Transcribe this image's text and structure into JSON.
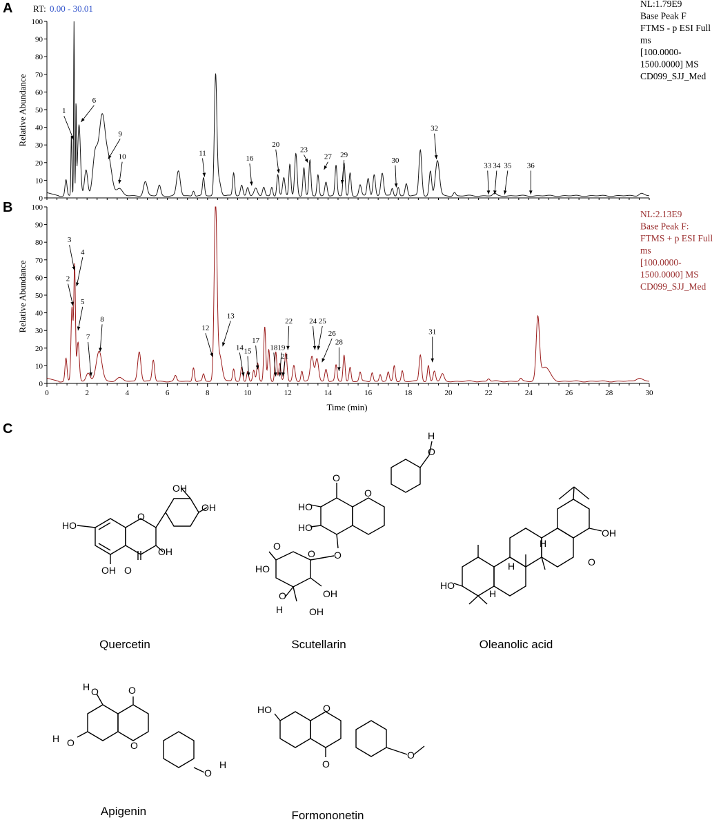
{
  "panels": {
    "a": "A",
    "b": "B",
    "c": "C"
  },
  "colors": {
    "trace_a": "#1a1a1a",
    "trace_b": "#9b1c1c",
    "rt_value": "#3355cc",
    "info_b": "#9b3030"
  },
  "chart_data": [
    {
      "id": "A",
      "type": "line",
      "title": "",
      "ylabel": "Relative Abundance",
      "xlabel": "",
      "xlim": [
        0,
        30
      ],
      "ylim": [
        0,
        100
      ],
      "yticks": [
        0,
        10,
        20,
        30,
        40,
        50,
        60,
        70,
        80,
        90,
        100
      ],
      "rt_label": "RT:",
      "rt_value": "0.00 - 30.01",
      "info": [
        "NL:1.79E9",
        "Base Peak F",
        "FTMS - p ESI Full",
        "ms",
        "[100.0000-",
        "1500.0000] MS",
        "CD099_SJJ_Med"
      ],
      "peaks": [
        {
          "x": 0.95,
          "h": 9,
          "w": 0.05
        },
        {
          "x": 1.22,
          "h": 35,
          "w": 0.025
        },
        {
          "x": 1.35,
          "h": 100,
          "w": 0.02
        },
        {
          "x": 1.45,
          "h": 50,
          "w": 0.02
        },
        {
          "x": 1.6,
          "h": 40,
          "w": 0.07
        },
        {
          "x": 1.95,
          "h": 15,
          "w": 0.08
        },
        {
          "x": 2.4,
          "h": 22,
          "w": 0.12
        },
        {
          "x": 2.75,
          "h": 45,
          "w": 0.16
        },
        {
          "x": 3.1,
          "h": 18,
          "w": 0.15
        },
        {
          "x": 3.6,
          "h": 4,
          "w": 0.15
        },
        {
          "x": 4.9,
          "h": 8,
          "w": 0.09
        },
        {
          "x": 5.6,
          "h": 6,
          "w": 0.07
        },
        {
          "x": 6.55,
          "h": 14,
          "w": 0.09
        },
        {
          "x": 7.3,
          "h": 3,
          "w": 0.05
        },
        {
          "x": 7.8,
          "h": 10,
          "w": 0.05
        },
        {
          "x": 8.4,
          "h": 66,
          "w": 0.06
        },
        {
          "x": 8.55,
          "h": 10,
          "w": 0.1
        },
        {
          "x": 9.3,
          "h": 13,
          "w": 0.05
        },
        {
          "x": 9.7,
          "h": 6,
          "w": 0.06
        },
        {
          "x": 10.0,
          "h": 5,
          "w": 0.06
        },
        {
          "x": 10.4,
          "h": 4,
          "w": 0.08
        },
        {
          "x": 10.8,
          "h": 5,
          "w": 0.06
        },
        {
          "x": 11.2,
          "h": 5,
          "w": 0.05
        },
        {
          "x": 11.5,
          "h": 12,
          "w": 0.05
        },
        {
          "x": 11.8,
          "h": 10,
          "w": 0.06
        },
        {
          "x": 12.1,
          "h": 18,
          "w": 0.05
        },
        {
          "x": 12.4,
          "h": 24,
          "w": 0.06
        },
        {
          "x": 12.8,
          "h": 16,
          "w": 0.05
        },
        {
          "x": 13.1,
          "h": 20,
          "w": 0.05
        },
        {
          "x": 13.5,
          "h": 12,
          "w": 0.05
        },
        {
          "x": 13.9,
          "h": 8,
          "w": 0.06
        },
        {
          "x": 14.4,
          "h": 17,
          "w": 0.05
        },
        {
          "x": 14.8,
          "h": 19,
          "w": 0.05
        },
        {
          "x": 15.1,
          "h": 13,
          "w": 0.05
        },
        {
          "x": 15.6,
          "h": 6,
          "w": 0.06
        },
        {
          "x": 16.0,
          "h": 10,
          "w": 0.06
        },
        {
          "x": 16.3,
          "h": 12,
          "w": 0.06
        },
        {
          "x": 16.7,
          "h": 13,
          "w": 0.07
        },
        {
          "x": 17.2,
          "h": 4,
          "w": 0.05
        },
        {
          "x": 17.5,
          "h": 5,
          "w": 0.05
        },
        {
          "x": 17.9,
          "h": 7,
          "w": 0.06
        },
        {
          "x": 18.6,
          "h": 26,
          "w": 0.07
        },
        {
          "x": 19.1,
          "h": 14,
          "w": 0.06
        },
        {
          "x": 19.45,
          "h": 20,
          "w": 0.1
        },
        {
          "x": 20.3,
          "h": 2,
          "w": 0.06
        },
        {
          "x": 22.3,
          "h": 1.2,
          "w": 0.08
        },
        {
          "x": 29.6,
          "h": 1.5,
          "w": 0.12
        }
      ],
      "labels": [
        {
          "text": "1",
          "tx": 0.85,
          "ty": 48,
          "ax": 1.33,
          "ay": 33
        },
        {
          "text": "6",
          "tx": 2.35,
          "ty": 54,
          "ax": 1.7,
          "ay": 43
        },
        {
          "text": "9",
          "tx": 3.65,
          "ty": 35,
          "ax": 3.05,
          "ay": 22
        },
        {
          "text": "10",
          "tx": 3.75,
          "ty": 22,
          "ax": 3.6,
          "ay": 8
        },
        {
          "text": "11",
          "tx": 7.75,
          "ty": 24,
          "ax": 7.85,
          "ay": 12
        },
        {
          "text": "16",
          "tx": 10.1,
          "ty": 21,
          "ax": 10.2,
          "ay": 7
        },
        {
          "text": "20",
          "tx": 11.4,
          "ty": 29,
          "ax": 11.55,
          "ay": 14
        },
        {
          "text": "23",
          "tx": 12.8,
          "ty": 26,
          "ax": 13.0,
          "ay": 20
        },
        {
          "text": "27",
          "tx": 14.0,
          "ty": 22,
          "ax": 13.8,
          "ay": 16
        },
        {
          "text": "29",
          "tx": 14.8,
          "ty": 23,
          "ax": 14.7,
          "ay": 8
        },
        {
          "text": "30",
          "tx": 17.35,
          "ty": 20,
          "ax": 17.4,
          "ay": 6
        },
        {
          "text": "32",
          "tx": 19.3,
          "ty": 38,
          "ax": 19.4,
          "ay": 22
        },
        {
          "text": "33",
          "tx": 21.95,
          "ty": 17,
          "ax": 22.0,
          "ay": 2
        },
        {
          "text": "34",
          "tx": 22.4,
          "ty": 17,
          "ax": 22.3,
          "ay": 2
        },
        {
          "text": "35",
          "tx": 22.95,
          "ty": 17,
          "ax": 22.8,
          "ay": 2
        },
        {
          "text": "36",
          "tx": 24.1,
          "ty": 17,
          "ax": 24.1,
          "ay": 2
        }
      ]
    },
    {
      "id": "B",
      "type": "line",
      "title": "",
      "ylabel": "Relative Abundance",
      "xlabel": "Time (min)",
      "xlim": [
        0,
        30
      ],
      "ylim": [
        0,
        100
      ],
      "xticks": [
        0,
        2,
        4,
        6,
        8,
        10,
        12,
        14,
        16,
        18,
        20,
        22,
        24,
        26,
        28,
        30
      ],
      "yticks": [
        0,
        10,
        20,
        30,
        40,
        50,
        60,
        70,
        80,
        90,
        100
      ],
      "info": [
        "NL:2.13E9",
        "Base Peak F:",
        "FTMS + p ESI Full",
        "ms",
        "[100.0000-",
        "1500.0000] MS",
        "CD099_SJJ_Med"
      ],
      "peaks": [
        {
          "x": 0.95,
          "h": 13,
          "w": 0.05
        },
        {
          "x": 1.25,
          "h": 42,
          "w": 0.05
        },
        {
          "x": 1.38,
          "h": 65,
          "w": 0.04
        },
        {
          "x": 1.55,
          "h": 22,
          "w": 0.06
        },
        {
          "x": 2.05,
          "h": 5,
          "w": 0.1
        },
        {
          "x": 2.6,
          "h": 17,
          "w": 0.14
        },
        {
          "x": 3.6,
          "h": 2,
          "w": 0.15
        },
        {
          "x": 4.6,
          "h": 17,
          "w": 0.08
        },
        {
          "x": 5.3,
          "h": 12,
          "w": 0.06
        },
        {
          "x": 6.4,
          "h": 3,
          "w": 0.06
        },
        {
          "x": 7.3,
          "h": 8,
          "w": 0.05
        },
        {
          "x": 7.8,
          "h": 4,
          "w": 0.05
        },
        {
          "x": 8.4,
          "h": 98,
          "w": 0.07
        },
        {
          "x": 8.6,
          "h": 15,
          "w": 0.12
        },
        {
          "x": 9.3,
          "h": 7,
          "w": 0.05
        },
        {
          "x": 9.7,
          "h": 8,
          "w": 0.05
        },
        {
          "x": 10.0,
          "h": 6,
          "w": 0.05
        },
        {
          "x": 10.3,
          "h": 6,
          "w": 0.05
        },
        {
          "x": 10.5,
          "h": 10,
          "w": 0.05
        },
        {
          "x": 10.85,
          "h": 31,
          "w": 0.05
        },
        {
          "x": 11.05,
          "h": 18,
          "w": 0.05
        },
        {
          "x": 11.4,
          "h": 17,
          "w": 0.05
        },
        {
          "x": 11.6,
          "h": 10,
          "w": 0.05
        },
        {
          "x": 11.9,
          "h": 16,
          "w": 0.06
        },
        {
          "x": 12.3,
          "h": 9,
          "w": 0.06
        },
        {
          "x": 12.7,
          "h": 6,
          "w": 0.05
        },
        {
          "x": 13.2,
          "h": 14,
          "w": 0.08
        },
        {
          "x": 13.45,
          "h": 13,
          "w": 0.08
        },
        {
          "x": 13.9,
          "h": 7,
          "w": 0.06
        },
        {
          "x": 14.4,
          "h": 9,
          "w": 0.05
        },
        {
          "x": 14.8,
          "h": 15,
          "w": 0.05
        },
        {
          "x": 15.1,
          "h": 8,
          "w": 0.05
        },
        {
          "x": 15.6,
          "h": 5,
          "w": 0.05
        },
        {
          "x": 16.2,
          "h": 5,
          "w": 0.05
        },
        {
          "x": 16.6,
          "h": 4,
          "w": 0.05
        },
        {
          "x": 17.0,
          "h": 5,
          "w": 0.05
        },
        {
          "x": 17.3,
          "h": 9,
          "w": 0.05
        },
        {
          "x": 17.7,
          "h": 6,
          "w": 0.05
        },
        {
          "x": 18.6,
          "h": 15,
          "w": 0.06
        },
        {
          "x": 19.0,
          "h": 9,
          "w": 0.05
        },
        {
          "x": 19.3,
          "h": 6,
          "w": 0.06
        },
        {
          "x": 19.7,
          "h": 4,
          "w": 0.08
        },
        {
          "x": 22.0,
          "h": 1.5,
          "w": 0.06
        },
        {
          "x": 23.6,
          "h": 1.5,
          "w": 0.06
        },
        {
          "x": 24.45,
          "h": 34,
          "w": 0.08
        },
        {
          "x": 24.8,
          "h": 8,
          "w": 0.25
        },
        {
          "x": 29.5,
          "h": 2,
          "w": 0.15
        }
      ],
      "labels": [
        {
          "text": "3",
          "tx": 1.12,
          "ty": 80,
          "ax": 1.37,
          "ay": 64
        },
        {
          "text": "4",
          "tx": 1.78,
          "ty": 73,
          "ax": 1.48,
          "ay": 55
        },
        {
          "text": "2",
          "tx": 1.05,
          "ty": 58,
          "ax": 1.3,
          "ay": 44
        },
        {
          "text": "5",
          "tx": 1.78,
          "ty": 45,
          "ax": 1.55,
          "ay": 30
        },
        {
          "text": "7",
          "tx": 2.05,
          "ty": 25,
          "ax": 2.2,
          "ay": 4
        },
        {
          "text": "8",
          "tx": 2.75,
          "ty": 35,
          "ax": 2.65,
          "ay": 18
        },
        {
          "text": "12",
          "tx": 7.9,
          "ty": 30,
          "ax": 8.25,
          "ay": 15
        },
        {
          "text": "13",
          "tx": 9.15,
          "ty": 37,
          "ax": 8.75,
          "ay": 21
        },
        {
          "text": "14",
          "tx": 9.6,
          "ty": 19,
          "ax": 9.8,
          "ay": 4
        },
        {
          "text": "15",
          "tx": 10.0,
          "ty": 17,
          "ax": 10.05,
          "ay": 4
        },
        {
          "text": "17",
          "tx": 10.4,
          "ty": 23,
          "ax": 10.5,
          "ay": 8
        },
        {
          "text": "18",
          "tx": 11.3,
          "ty": 19,
          "ax": 11.4,
          "ay": 4
        },
        {
          "text": "19",
          "tx": 11.68,
          "ty": 19,
          "ax": 11.6,
          "ay": 4
        },
        {
          "text": "21",
          "tx": 11.85,
          "ty": 14,
          "ax": 11.75,
          "ay": 4
        },
        {
          "text": "22",
          "tx": 12.05,
          "ty": 34,
          "ax": 12.0,
          "ay": 19
        },
        {
          "text": "24",
          "tx": 13.25,
          "ty": 34,
          "ax": 13.35,
          "ay": 19
        },
        {
          "text": "25",
          "tx": 13.72,
          "ty": 34,
          "ax": 13.5,
          "ay": 19
        },
        {
          "text": "26",
          "tx": 14.2,
          "ty": 27,
          "ax": 13.7,
          "ay": 12
        },
        {
          "text": "28",
          "tx": 14.55,
          "ty": 22,
          "ax": 14.55,
          "ay": 7
        },
        {
          "text": "31",
          "tx": 19.2,
          "ty": 28,
          "ax": 19.2,
          "ay": 12
        }
      ]
    }
  ],
  "structures": {
    "quercetin": {
      "name": "Quercetin",
      "labels": {
        "oh_6": "HO",
        "oh_3p": "OH",
        "oh_4p": "OH",
        "oh_3": "OH",
        "oh_5": "OH",
        "o_ring": "O",
        "o_keto": "O"
      }
    },
    "scutellarin": {
      "name": "Scutellarin",
      "labels": {
        "h_top": "H",
        "o_top": "O",
        "o_keto": "O",
        "o_ring": "O",
        "ho_5": "HO",
        "ho_6": "HO",
        "o_link": "O",
        "ho_acid": "HO",
        "o_acid": "O",
        "o_pyran": "O",
        "o_2p": "O",
        "h_2p": "H",
        "oh_3p": "OH",
        "oh_4p": "OH"
      }
    },
    "oleanolic": {
      "name": "Oleanolic acid",
      "labels": {
        "ho": "HO",
        "oh_acid": "OH",
        "o_acid": "O",
        "h_1": "H",
        "h_2": "H",
        "h_3": "H"
      }
    },
    "apigenin": {
      "name": "Apigenin",
      "labels": {
        "h_5": "H",
        "o_5": "O",
        "h_7": "H",
        "o_7": "O",
        "o_keto": "O",
        "o_ring": "O",
        "o_4p": "O",
        "h_4p": "H"
      }
    },
    "formononetin": {
      "name": "Formononetin",
      "labels": {
        "ho": "HO",
        "o_ring": "O",
        "o_keto": "O",
        "o_meth": "O"
      }
    }
  }
}
